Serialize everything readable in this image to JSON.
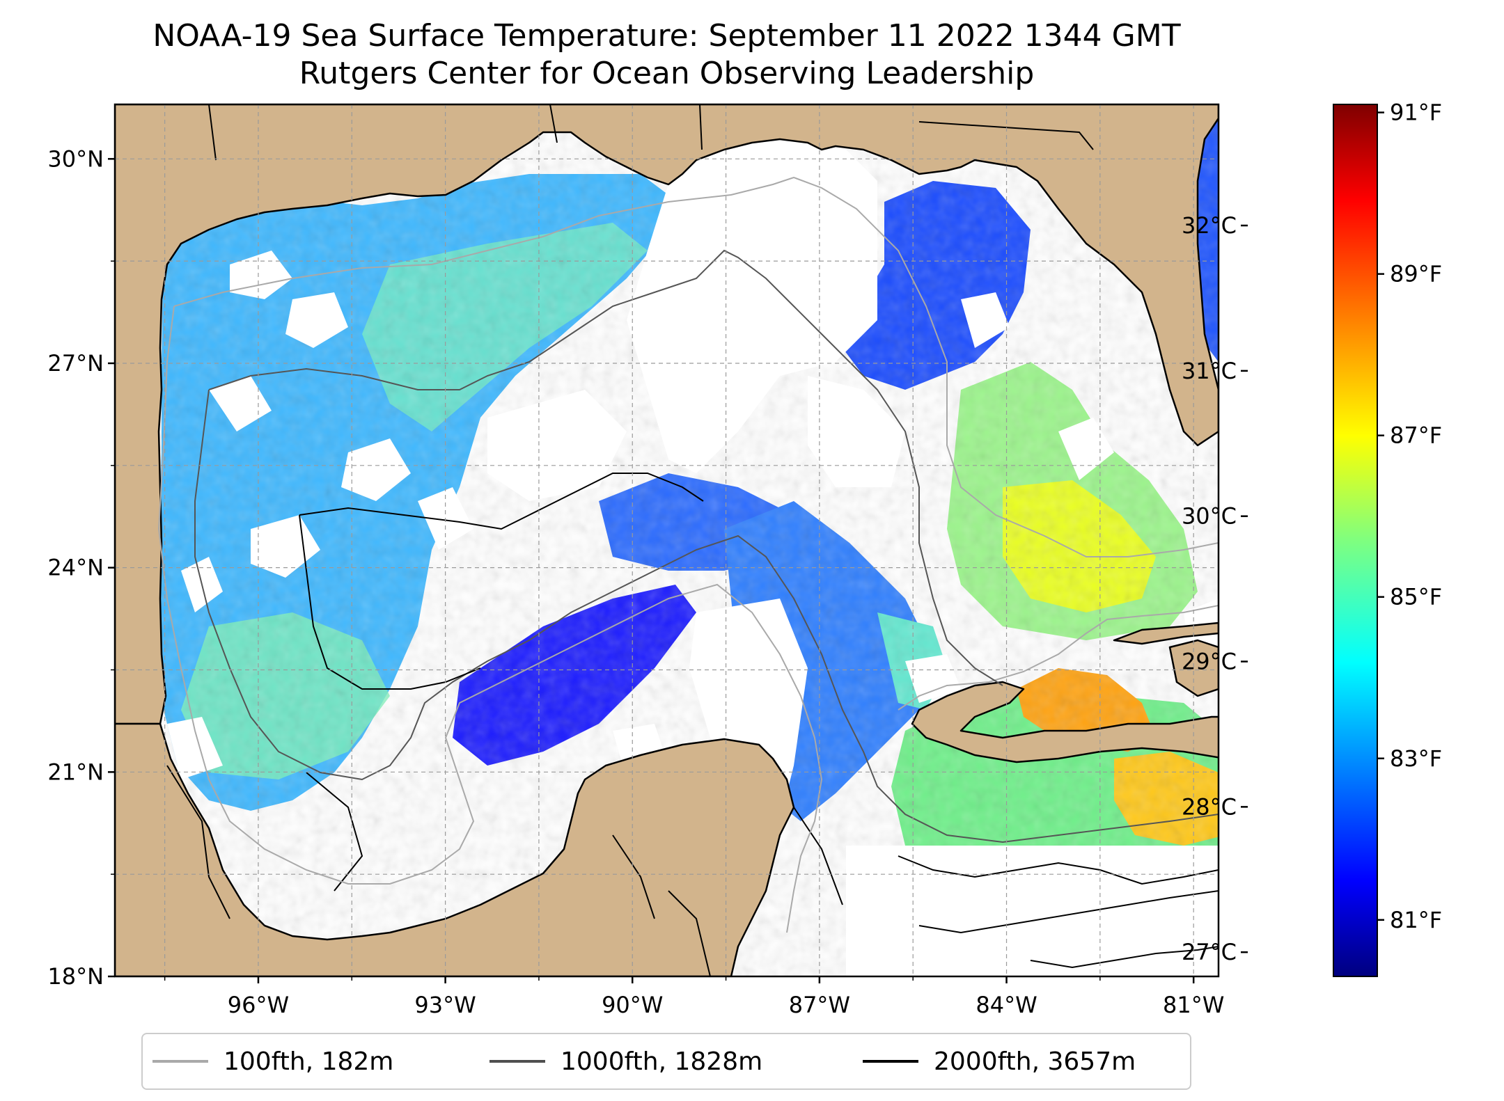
{
  "title": "NOAA-19 Sea Surface Temperature: September 11 2022 1344 GMT",
  "subtitle": "Rutgers Center for Ocean Observing Leadership",
  "map": {
    "lat_ticks": [
      "30°N",
      "27°N",
      "24°N",
      "21°N",
      "18°N"
    ],
    "lon_ticks": [
      "96°W",
      "93°W",
      "90°W",
      "87°W",
      "84°W",
      "81°W"
    ],
    "lon_range": [
      -98.3,
      -80.6
    ],
    "lat_range": [
      18.0,
      30.8
    ],
    "gridlines": true,
    "land_color": "#d2b48c",
    "ocean_fill": "#ffffff"
  },
  "colorbar": {
    "colormap": "jet",
    "fahrenheit_ticks": [
      "91°F",
      "89°F",
      "87°F",
      "85°F",
      "83°F",
      "81°F"
    ],
    "celsius_ticks": [
      "32°C",
      "31°C",
      "30°C",
      "29°C",
      "28°C",
      "27°C"
    ],
    "range_f": [
      80.3,
      91.1
    ]
  },
  "legend": {
    "items": [
      {
        "label": "100fth, 182m",
        "color": "#a9a9a9"
      },
      {
        "label": "1000fth, 1828m",
        "color": "#4f4f4f"
      },
      {
        "label": "2000fth, 3657m",
        "color": "#000000"
      }
    ]
  }
}
